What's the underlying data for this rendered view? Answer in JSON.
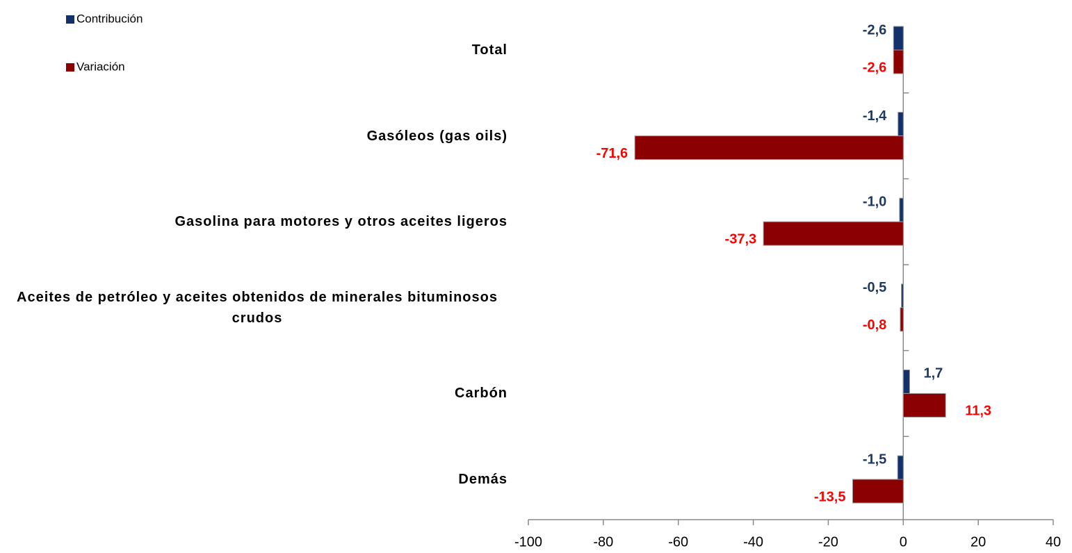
{
  "chart_data": {
    "type": "bar",
    "orientation": "horizontal",
    "categories": [
      "Total",
      "Gasóleos (gas oils)",
      "Gasolina para motores y otros aceites ligeros",
      "Aceites de petróleo y aceites obtenidos de minerales bituminosos crudos",
      "Carbón",
      "Demás"
    ],
    "series": [
      {
        "name": "Contribución",
        "color": "#14306b",
        "label_color": "#1f3864",
        "values": [
          -2.6,
          -1.4,
          -1.0,
          -0.5,
          1.7,
          -1.5
        ],
        "value_labels": [
          "-2,6",
          "-1,4",
          "-1,0",
          "-0,5",
          "1,7",
          "-1,5"
        ]
      },
      {
        "name": "Variación",
        "color": "#8b0000",
        "label_color": "#ff0000",
        "values": [
          -2.6,
          -71.6,
          -37.3,
          -0.8,
          11.3,
          -13.5
        ],
        "value_labels": [
          "-2,6",
          "-71,6",
          "-37,3",
          "-0,8",
          "11,3",
          "-13,5"
        ]
      }
    ],
    "xlim": [
      -100,
      40
    ],
    "xticks": [
      -100,
      -80,
      -60,
      -40,
      -20,
      0,
      20,
      40
    ],
    "legend": "top-left",
    "grid": false
  }
}
